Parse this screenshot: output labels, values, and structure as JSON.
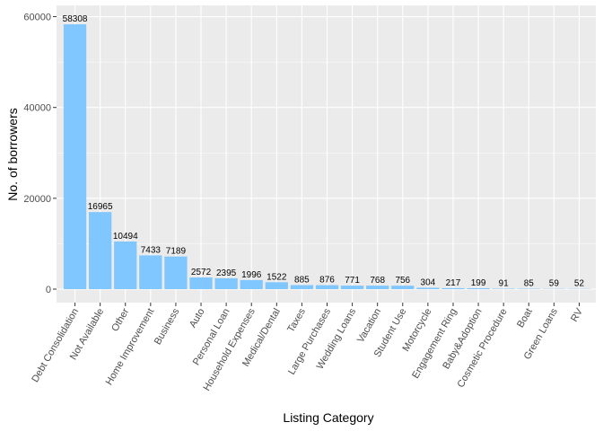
{
  "chart_data": {
    "type": "bar",
    "title": "",
    "xlabel": "Listing Category",
    "ylabel": "No. of borrowers",
    "ylim": [
      0,
      61000
    ],
    "yticks": [
      0,
      20000,
      40000,
      60000
    ],
    "grid": true,
    "bar_color": "#80C6FF",
    "panel_background": "#EBEBEB",
    "grid_color": "#FFFFFF",
    "categories": [
      "Debt Consolidation",
      "Not Available",
      "Other",
      "Home Improvement",
      "Business",
      "Auto",
      "Personal Loan",
      "Household Expenses",
      "Medical/Dental",
      "Taxes",
      "Large Purchases",
      "Wedding Loans",
      "Vacation",
      "Student Use",
      "Motorcycle",
      "Engagement Ring",
      "Baby&Adoption",
      "Cosmetic Procedure",
      "Boat",
      "Green Loans",
      "RV"
    ],
    "values": [
      58308,
      16965,
      10494,
      7433,
      7189,
      2572,
      2395,
      1996,
      1522,
      885,
      876,
      771,
      768,
      756,
      304,
      217,
      199,
      91,
      85,
      59,
      52
    ]
  }
}
